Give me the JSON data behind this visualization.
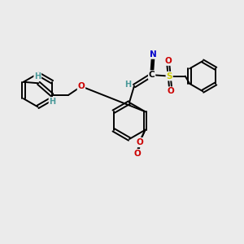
{
  "background_color": "#ebebeb",
  "figsize": [
    3.0,
    3.0
  ],
  "dpi": 100,
  "atom_colors": {
    "C": "#000000",
    "H": "#4a9999",
    "N": "#0000cc",
    "O": "#cc0000",
    "S": "#cccc00"
  },
  "bond_color": "#000000",
  "bond_width": 1.4,
  "font_size_atom": 7.5,
  "font_size_h": 7
}
